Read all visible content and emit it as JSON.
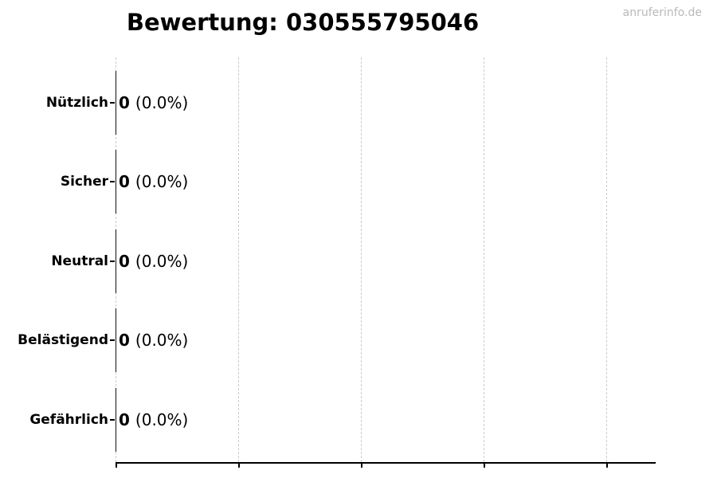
{
  "title": "Bewertung: 030555795046",
  "watermark": "anruferinfo.de",
  "colors": {
    "text": "#000000",
    "axis": "#000000",
    "gridline": "#cccccc",
    "bar_edge": "#111111",
    "watermark": "#b9b9b9",
    "background": "#ffffff"
  },
  "chart_data": {
    "type": "bar",
    "orientation": "horizontal",
    "title": "Bewertung: 030555795046",
    "xlabel": "",
    "ylabel": "",
    "categories": [
      "Nützlich",
      "Sicher",
      "Neutral",
      "Belästigend",
      "Gefährlich"
    ],
    "values": [
      0,
      0,
      0,
      0,
      0
    ],
    "percentages": [
      0.0,
      0.0,
      0.0,
      0.0,
      0.0
    ],
    "value_texts": [
      {
        "count": "0",
        "pct": "(0.0%)"
      },
      {
        "count": "0",
        "pct": "(0.0%)"
      },
      {
        "count": "0",
        "pct": "(0.0%)"
      },
      {
        "count": "0",
        "pct": "(0.0%)"
      },
      {
        "count": "0",
        "pct": "(0.0%)"
      }
    ],
    "x_tick_labels": [],
    "grid": {
      "vertical_gridlines": 5,
      "style": "dashed",
      "on": true
    },
    "legend": {
      "visible": false
    }
  }
}
